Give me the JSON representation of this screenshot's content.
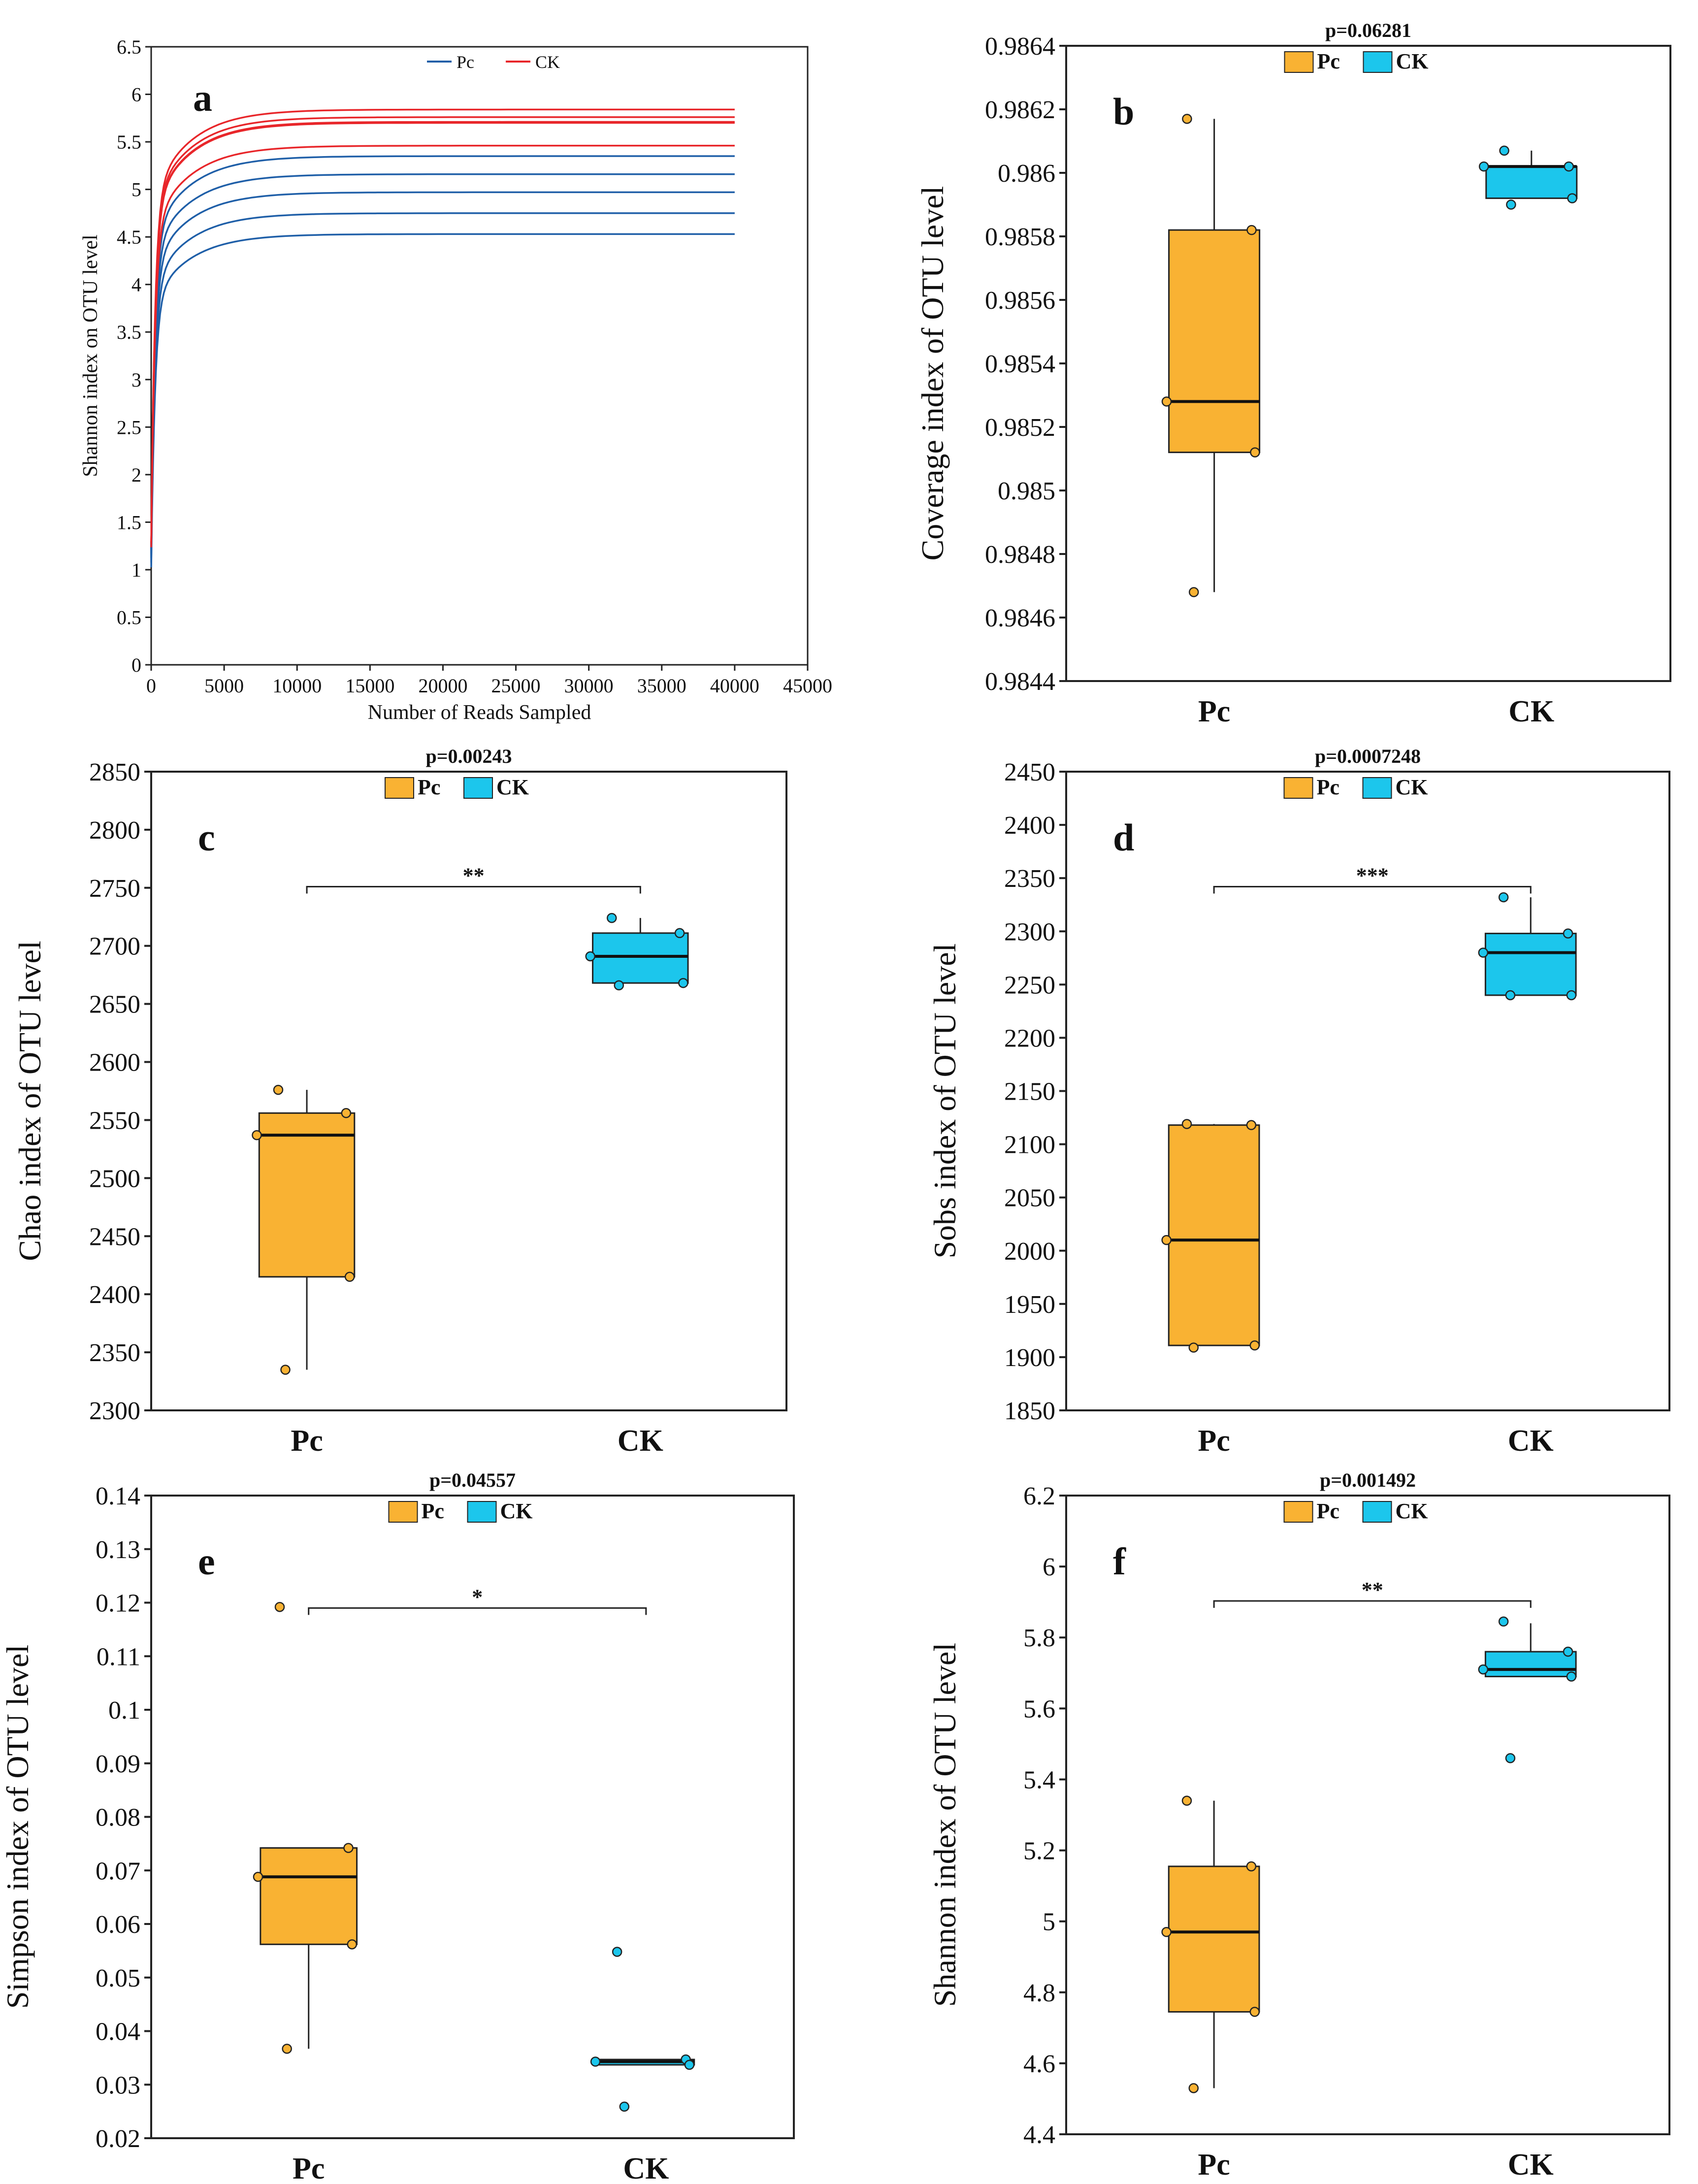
{
  "chart_data": [
    {
      "id": "a",
      "type": "line",
      "panel_letter": "a",
      "xlabel": "Number of Reads Sampled",
      "ylabel": "Shannon index on OTU level",
      "xlim": [
        0,
        45000
      ],
      "ylim": [
        0,
        6.5
      ],
      "xticks": [
        "0",
        "5000",
        "10000",
        "15000",
        "20000",
        "25000",
        "30000",
        "35000",
        "40000",
        "45000"
      ],
      "yticks": [
        "0",
        "0.5",
        "1",
        "1.5",
        "2",
        "2.5",
        "3",
        "3.5",
        "4",
        "4.5",
        "5",
        "5.5",
        "6",
        "6.5"
      ],
      "legend": [
        {
          "name": "Pc",
          "color": "#1f5fa8"
        },
        {
          "name": "CK",
          "color": "#e8262a"
        }
      ],
      "series": [
        {
          "group": "Pc",
          "color": "#1f5fa8",
          "final": 5.35
        },
        {
          "group": "Pc",
          "color": "#1f5fa8",
          "final": 5.16
        },
        {
          "group": "Pc",
          "color": "#1f5fa8",
          "final": 4.97
        },
        {
          "group": "Pc",
          "color": "#1f5fa8",
          "final": 4.75
        },
        {
          "group": "Pc",
          "color": "#1f5fa8",
          "final": 4.53
        },
        {
          "group": "CK",
          "color": "#e8262a",
          "final": 5.84
        },
        {
          "group": "CK",
          "color": "#e8262a",
          "final": 5.76
        },
        {
          "group": "CK",
          "color": "#e8262a",
          "final": 5.71
        },
        {
          "group": "CK",
          "color": "#e8262a",
          "final": 5.7
        },
        {
          "group": "CK",
          "color": "#e8262a",
          "final": 5.46
        }
      ],
      "x_end": 40000
    },
    {
      "id": "b",
      "type": "box",
      "panel_letter": "b",
      "p_label": "p=0.06281",
      "ylabel": "Coverage index of OTU level",
      "ylim": [
        0.9844,
        0.9864
      ],
      "yticks": [
        "0.9844",
        "0.9846",
        "0.9848",
        "0.985",
        "0.9852",
        "0.9854",
        "0.9856",
        "0.9858",
        "0.986",
        "0.9862",
        "0.9864"
      ],
      "significance": "",
      "groups": [
        {
          "name": "Pc",
          "color": "#f9b233",
          "min": 0.98468,
          "q1": 0.98512,
          "median": 0.98528,
          "q3": 0.98582,
          "max": 0.98617,
          "points": [
            0.98617,
            0.98582,
            0.98528,
            0.98512,
            0.98468
          ]
        },
        {
          "name": "CK",
          "color": "#1cc6ec",
          "min": 0.98592,
          "q1": 0.98592,
          "median": 0.98602,
          "q3": 0.98602,
          "max": 0.98607,
          "points": [
            0.98607,
            0.98602,
            0.98602,
            0.98592,
            0.9859
          ]
        }
      ]
    },
    {
      "id": "c",
      "type": "box",
      "panel_letter": "c",
      "p_label": "p=0.00243",
      "ylabel": "Chao index of OTU level",
      "ylim": [
        2300,
        2850
      ],
      "yticks": [
        "2300",
        "2350",
        "2400",
        "2450",
        "2500",
        "2550",
        "2600",
        "2650",
        "2700",
        "2750",
        "2800",
        "2850"
      ],
      "significance": "**",
      "groups": [
        {
          "name": "Pc",
          "color": "#f9b233",
          "min": 2335,
          "q1": 2415,
          "median": 2537,
          "q3": 2556,
          "max": 2576,
          "points": [
            2576,
            2556,
            2537,
            2415,
            2335
          ]
        },
        {
          "name": "CK",
          "color": "#1cc6ec",
          "min": 2668,
          "q1": 2668,
          "median": 2691,
          "q3": 2711,
          "max": 2724,
          "points": [
            2724,
            2711,
            2691,
            2668,
            2666
          ]
        }
      ]
    },
    {
      "id": "d",
      "type": "box",
      "panel_letter": "d",
      "p_label": "p=0.0007248",
      "ylabel": "Sobs index of OTU level",
      "ylim": [
        1850,
        2450
      ],
      "yticks": [
        "1850",
        "1900",
        "1950",
        "2000",
        "2050",
        "2100",
        "2150",
        "2200",
        "2250",
        "2300",
        "2350",
        "2400",
        "2450"
      ],
      "significance": "***",
      "groups": [
        {
          "name": "Pc",
          "color": "#f9b233",
          "min": 1911,
          "q1": 1911,
          "median": 2010,
          "q3": 2118,
          "max": 2119,
          "points": [
            2119,
            2118,
            2010,
            1911,
            1909
          ]
        },
        {
          "name": "CK",
          "color": "#1cc6ec",
          "min": 2240,
          "q1": 2240,
          "median": 2280,
          "q3": 2298,
          "max": 2332,
          "points": [
            2332,
            2298,
            2280,
            2240,
            2240
          ]
        }
      ]
    },
    {
      "id": "e",
      "type": "box",
      "panel_letter": "e",
      "p_label": "p=0.04557",
      "ylabel": "Simpson index of OTU level",
      "ylim": [
        0.02,
        0.14
      ],
      "yticks": [
        "0.02",
        "0.03",
        "0.04",
        "0.05",
        "0.06",
        "0.07",
        "0.08",
        "0.09",
        "0.1",
        "0.11",
        "0.12",
        "0.13",
        "0.14"
      ],
      "significance": "*",
      "groups": [
        {
          "name": "Pc",
          "color": "#f9b233",
          "min": 0.0367,
          "q1": 0.0562,
          "median": 0.0688,
          "q3": 0.0742,
          "max": 0.0742,
          "points": [
            0.1192,
            0.0742,
            0.0688,
            0.0562,
            0.0367
          ]
        },
        {
          "name": "CK",
          "color": "#1cc6ec",
          "min": 0.0337,
          "q1": 0.0337,
          "median": 0.0343,
          "q3": 0.0347,
          "max": 0.0347,
          "points": [
            0.0548,
            0.0347,
            0.0343,
            0.0337,
            0.0259
          ]
        }
      ]
    },
    {
      "id": "f",
      "type": "box",
      "panel_letter": "f",
      "p_label": "p=0.001492",
      "ylabel": "Shannon index of OTU level",
      "ylim": [
        4.4,
        6.2
      ],
      "yticks": [
        "4.4",
        "4.6",
        "4.8",
        "5",
        "5.2",
        "5.4",
        "5.6",
        "5.8",
        "6",
        "6.2"
      ],
      "significance": "**",
      "groups": [
        {
          "name": "Pc",
          "color": "#f9b233",
          "min": 4.53,
          "q1": 4.745,
          "median": 4.97,
          "q3": 5.155,
          "max": 5.34,
          "points": [
            5.34,
            5.155,
            4.97,
            4.745,
            4.53
          ]
        },
        {
          "name": "CK",
          "color": "#1cc6ec",
          "min": 5.69,
          "q1": 5.69,
          "median": 5.71,
          "q3": 5.76,
          "max": 5.84,
          "points": [
            5.845,
            5.76,
            5.71,
            5.69,
            5.46
          ]
        }
      ]
    }
  ]
}
